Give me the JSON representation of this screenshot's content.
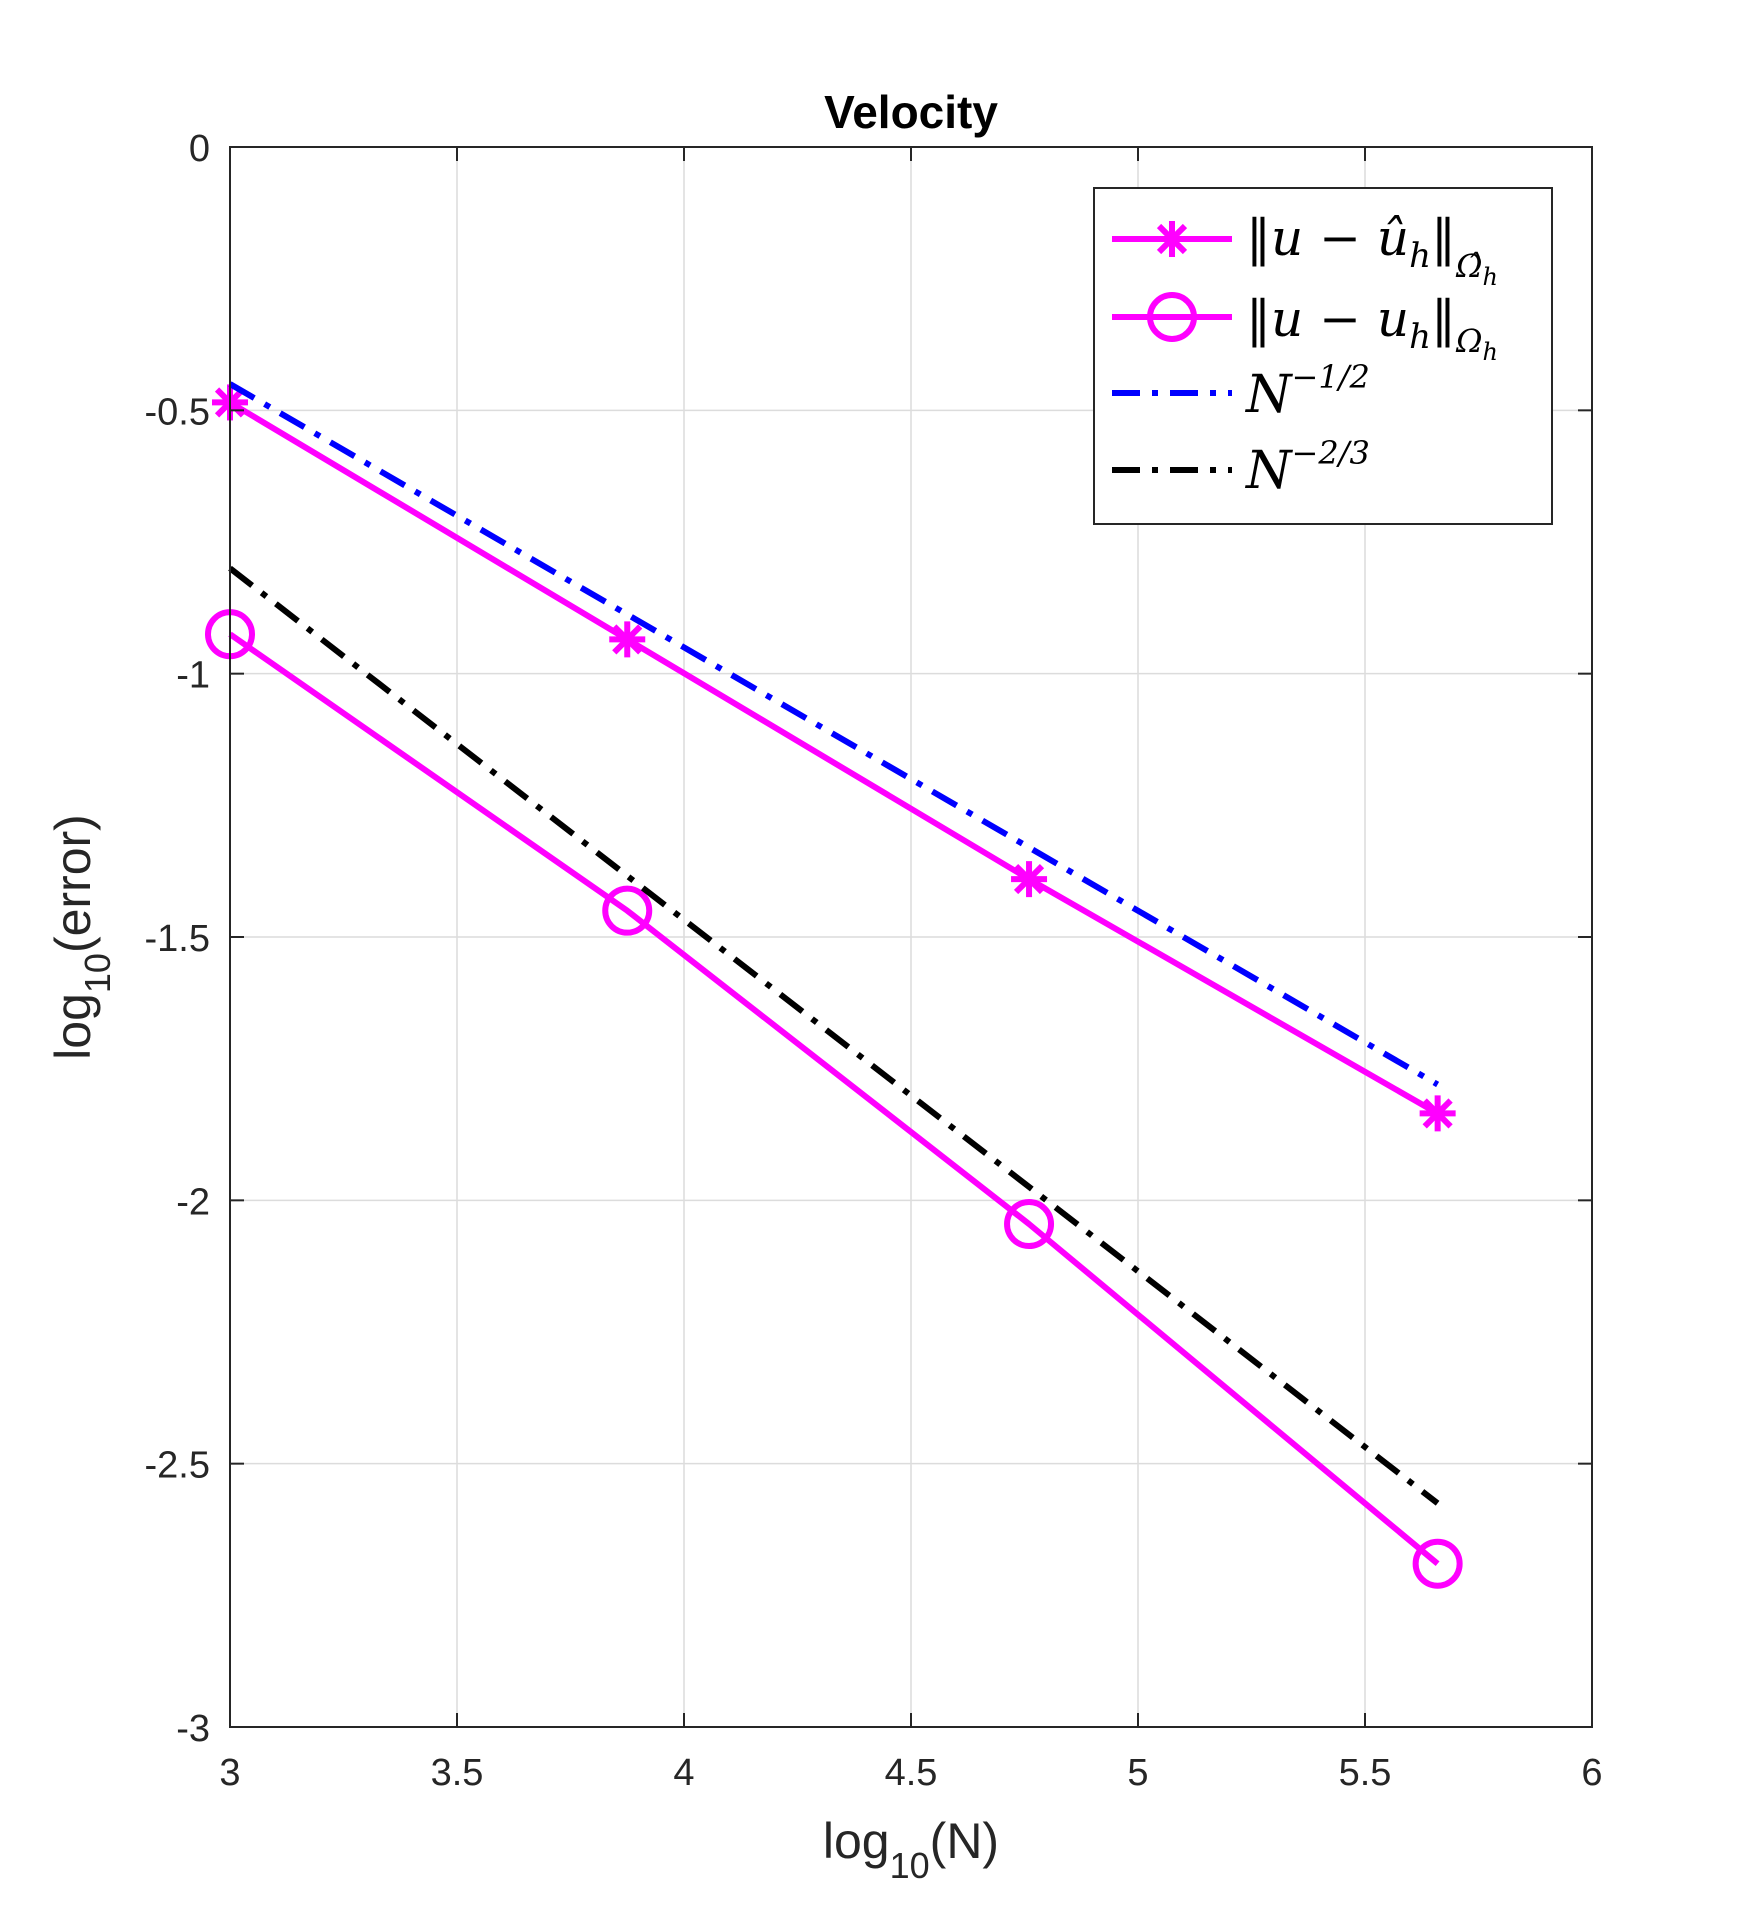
{
  "chart_data": {
    "type": "line",
    "title": "Velocity",
    "xlabel": {
      "base": "log",
      "sub": "10",
      "rest": "(N)"
    },
    "ylabel": {
      "base": "log",
      "sub": "10",
      "rest": "(error)"
    },
    "xlim": [
      3,
      6
    ],
    "ylim": [
      -3,
      0
    ],
    "grid": true,
    "xticks": [
      3,
      3.5,
      4,
      4.5,
      5,
      5.5,
      6
    ],
    "xtick_labels": [
      "3",
      "3.5",
      "4",
      "4.5",
      "5",
      "5.5",
      "6"
    ],
    "yticks": [
      0,
      -0.5,
      -1,
      -1.5,
      -2,
      -2.5,
      -3
    ],
    "ytick_labels": [
      "0",
      "-0.5",
      "-1",
      "-1.5",
      "-2",
      "-2.5",
      "-3"
    ],
    "legend_position": "top-right",
    "series": [
      {
        "name": "||u − û_h||_{Ω̂_h}",
        "legend": {
          "main": "‖u − û",
          "sub": "h",
          "close": "‖",
          "sub2": "Ω̂",
          "sub2b": "h"
        },
        "color": "#ff00ff",
        "line": "solid",
        "marker": "asterisk",
        "x": [
          3.0,
          3.875,
          4.76,
          5.66
        ],
        "y": [
          -0.485,
          -0.935,
          -1.39,
          -1.835
        ]
      },
      {
        "name": "||u − u_h||_{Ω_h}",
        "legend": {
          "main": "‖u − u",
          "sub": "h",
          "close": "‖",
          "sub2": "Ω",
          "sub2b": "h"
        },
        "color": "#ff00ff",
        "line": "solid",
        "marker": "circle",
        "x": [
          3.0,
          3.875,
          4.76,
          5.66
        ],
        "y": [
          -0.925,
          -1.45,
          -2.045,
          -2.69
        ]
      },
      {
        "name": "N^{-1/2}",
        "legend": {
          "main": "N",
          "sup": "−1/2"
        },
        "color": "#0000ff",
        "line": "dashdot",
        "marker": "none",
        "x": [
          3.0,
          5.66
        ],
        "y": [
          -0.45,
          -1.78
        ]
      },
      {
        "name": "N^{-2/3}",
        "legend": {
          "main": "N",
          "sup": "−2/3"
        },
        "color": "#000000",
        "line": "dashdot",
        "marker": "none",
        "x": [
          3.0,
          5.66
        ],
        "y": [
          -0.8,
          -2.575
        ]
      }
    ]
  }
}
